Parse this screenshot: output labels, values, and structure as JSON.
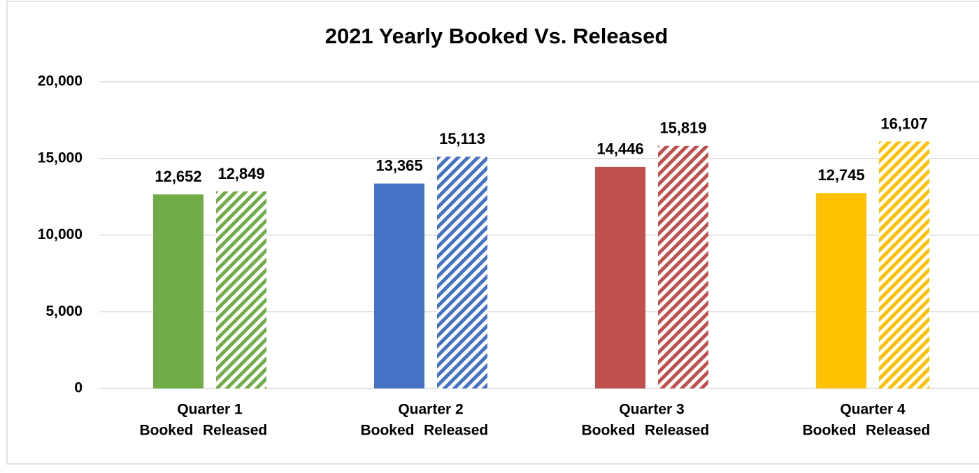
{
  "chart_data": {
    "type": "bar",
    "title": "2021 Yearly Booked Vs. Released",
    "categories": [
      "Quarter 1",
      "Quarter 2",
      "Quarter 3",
      "Quarter 4"
    ],
    "series": [
      {
        "name": "Booked",
        "values": [
          12652,
          13365,
          14446,
          12745
        ],
        "value_labels": [
          "12,652",
          "13,365",
          "14,446",
          "12,745"
        ],
        "colors": [
          "#70ad47",
          "#4472c4",
          "#c0504d",
          "#ffc000"
        ]
      },
      {
        "name": "Released",
        "values": [
          12849,
          15113,
          15819,
          16107
        ],
        "value_labels": [
          "12,849",
          "15,113",
          "15,819",
          "16,107"
        ],
        "colors": [
          "#70ad47",
          "#4472c4",
          "#c0504d",
          "#ffc000"
        ],
        "pattern": "hatch"
      }
    ],
    "ylim": [
      0,
      20000
    ],
    "yticks": [
      0,
      {
        "value": 5000,
        "label": "5,000"
      },
      {
        "value": 10000,
        "label": "10,000"
      },
      {
        "value": 15000,
        "label": "15,000"
      },
      {
        "value": 20000,
        "label": "20,000"
      }
    ],
    "grid": true
  }
}
